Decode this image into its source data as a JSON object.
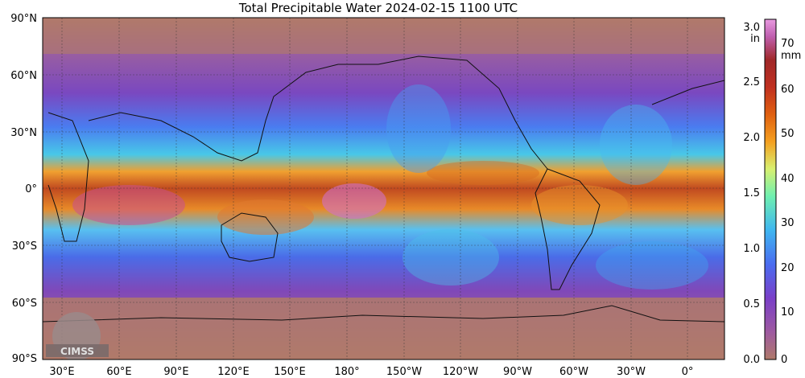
{
  "title": "Total Precipitable Water  2024-02-15 1100 UTC",
  "map": {
    "lat_labels": [
      "90°N",
      "60°N",
      "30°N",
      "0°",
      "30°S",
      "60°S",
      "90°S"
    ],
    "lon_labels": [
      "30°E",
      "60°E",
      "90°E",
      "120°E",
      "150°E",
      "180°",
      "150°W",
      "120°W",
      "90°W",
      "60°W",
      "30°W",
      "0°"
    ],
    "logo_text": "CIMSS",
    "field_color": "#b07a6a"
  },
  "colorbar": {
    "left_unit": "in",
    "right_unit": "mm",
    "inch_ticks": [
      "3.0",
      "2.5",
      "2.0",
      "1.5",
      "1.0",
      "0.5",
      "0.0"
    ],
    "mm_ticks": [
      "70",
      "60",
      "50",
      "40",
      "30",
      "20",
      "10",
      "0"
    ],
    "color_stops": [
      "#b07a6a",
      "#9e5aa0",
      "#7a3fc8",
      "#4a6cf0",
      "#3fb6f0",
      "#6ff0b0",
      "#d8f070",
      "#f4a020",
      "#e06010",
      "#c03020",
      "#a02828",
      "#c060b0",
      "#e89ae0"
    ]
  }
}
